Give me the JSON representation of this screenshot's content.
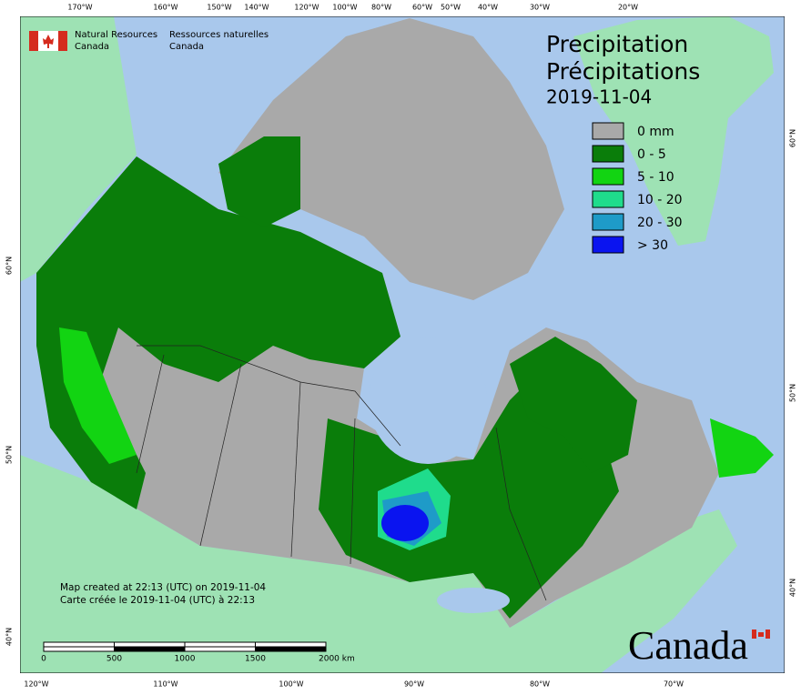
{
  "header": {
    "org_en": [
      "Natural Resources",
      "Canada"
    ],
    "org_fr": [
      "Ressources naturelles",
      "Canada"
    ]
  },
  "title": {
    "en": "Precipitation",
    "fr": "Précipitations",
    "date": "2019-11-04"
  },
  "legend": [
    {
      "label": "0 mm",
      "color": "#a9a9a9"
    },
    {
      "label": "0 - 5",
      "color": "#0a7d0a"
    },
    {
      "label": "5 - 10",
      "color": "#12d412"
    },
    {
      "label": "10 - 20",
      "color": "#1fdc8c"
    },
    {
      "label": "20 - 30",
      "color": "#1e9bc8"
    },
    {
      "label": "> 30",
      "color": "#0a14f0"
    }
  ],
  "graticule": {
    "top": [
      "170°W",
      "160°W",
      "150°W",
      "140°W",
      "120°W",
      "100°W",
      "80°W",
      "60°W",
      "50°W",
      "40°W",
      "30°W",
      "20°W"
    ],
    "bottom": [
      "120°W",
      "110°W",
      "100°W",
      "90°W",
      "80°W",
      "70°W"
    ],
    "left": [
      "60°N",
      "50°N",
      "40°N"
    ],
    "right": [
      "60°N",
      "50°N",
      "40°N"
    ]
  },
  "scale": [
    "0",
    "500",
    "1000",
    "1500",
    "2000  km"
  ],
  "credits": [
    "Map created at 22:13 (UTC) on 2019-11-04",
    "Carte créée le 2019-11-04 (UTC) à 22:13"
  ],
  "wordmark": "Canada"
}
